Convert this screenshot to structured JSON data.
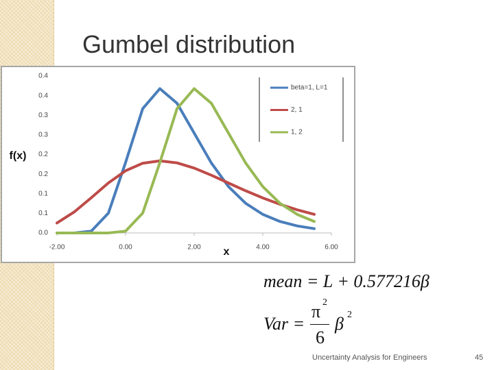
{
  "slide": {
    "title": "Gumbel distribution",
    "formula_mean": "mean = L + 0.577216β",
    "formula_var": {
      "lhs": "Var =",
      "numerator": "π",
      "numerator_exp": "2",
      "denominator": "6",
      "factor": "β",
      "factor_exp": "2"
    },
    "footer": "Uncertainty Analysis for Engineers",
    "page_number": "45"
  },
  "chart_data": {
    "type": "line",
    "x_label": "x",
    "y_label": "f(x)",
    "x": [
      -2,
      -1.5,
      -1,
      -0.5,
      0,
      0.5,
      1,
      1.5,
      2,
      2.5,
      3,
      3.5,
      4,
      4.5,
      5,
      5.5
    ],
    "series": [
      {
        "name": "beta=1, L=1",
        "color": "#4a7ebb",
        "values": [
          0,
          0.0001,
          0.0046,
          0.0507,
          0.1794,
          0.317,
          0.3679,
          0.3307,
          0.2546,
          0.1785,
          0.1182,
          0.0756,
          0.0474,
          0.0293,
          0.018,
          0.011
        ]
      },
      {
        "name": "2, 1",
        "color": "#be4b48",
        "values": [
          0.0254,
          0.0533,
          0.0897,
          0.1275,
          0.1585,
          0.1778,
          0.1839,
          0.1787,
          0.1654,
          0.1473,
          0.1273,
          0.1076,
          0.0893,
          0.0731,
          0.0591,
          0.0475
        ]
      },
      {
        "name": "1, 2",
        "color": "#98b954",
        "values": [
          0,
          0,
          0,
          0.0001,
          0.0046,
          0.0507,
          0.1794,
          0.317,
          0.3679,
          0.3307,
          0.2546,
          0.1785,
          0.1182,
          0.0756,
          0.0474,
          0.0293
        ]
      }
    ],
    "xlim": [
      -2,
      6
    ],
    "xticks": [
      {
        "value": -2,
        "label": "-2.00"
      },
      {
        "value": 0,
        "label": "0.00"
      },
      {
        "value": 2,
        "label": "2.00"
      },
      {
        "value": 4,
        "label": "4.00"
      },
      {
        "value": 6,
        "label": "6.00"
      }
    ],
    "ylim": [
      0,
      0.4
    ],
    "yticks": [
      {
        "value": 0,
        "label": "0.0"
      },
      {
        "value": 0.05,
        "label": "0.1"
      },
      {
        "value": 0.1,
        "label": "0.1"
      },
      {
        "value": 0.15,
        "label": "0.2"
      },
      {
        "value": 0.2,
        "label": "0.2"
      },
      {
        "value": 0.25,
        "label": "0.3"
      },
      {
        "value": 0.3,
        "label": "0.3"
      },
      {
        "value": 0.35,
        "label": "0.4"
      },
      {
        "value": 0.4,
        "label": "0.4"
      }
    ],
    "grid": false,
    "legend": "upper right"
  }
}
